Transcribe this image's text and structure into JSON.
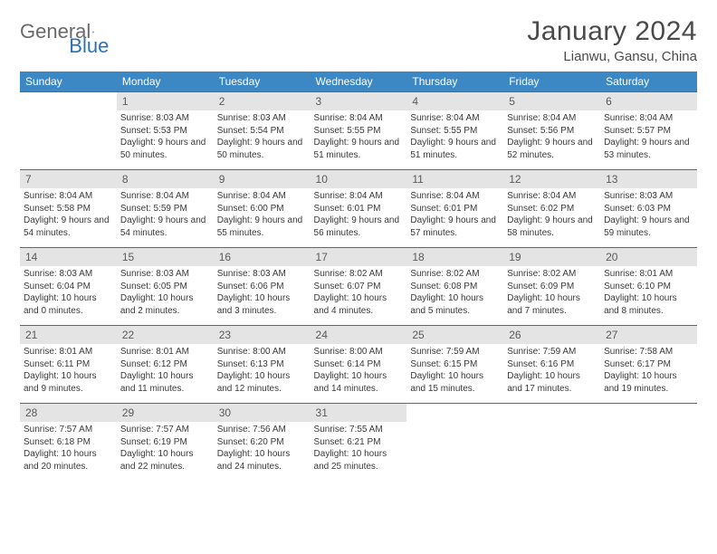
{
  "logo": {
    "text1": "General",
    "text2": "Blue"
  },
  "title": "January 2024",
  "location": "Lianwu, Gansu, China",
  "colors": {
    "header_bg": "#3b88c4",
    "header_text": "#ffffff",
    "row_border": "#3b6fa0",
    "daynum_bg": "#e4e4e4",
    "daynum_text": "#5a5a5a",
    "body_text": "#3a3a3a",
    "title_text": "#4a4a4a",
    "logo_gray": "#6a6a6a",
    "logo_blue": "#2a73b8"
  },
  "days_of_week": [
    "Sunday",
    "Monday",
    "Tuesday",
    "Wednesday",
    "Thursday",
    "Friday",
    "Saturday"
  ],
  "weeks": [
    [
      null,
      {
        "n": "1",
        "sr": "8:03 AM",
        "ss": "5:53 PM",
        "dl": "9 hours and 50 minutes."
      },
      {
        "n": "2",
        "sr": "8:03 AM",
        "ss": "5:54 PM",
        "dl": "9 hours and 50 minutes."
      },
      {
        "n": "3",
        "sr": "8:04 AM",
        "ss": "5:55 PM",
        "dl": "9 hours and 51 minutes."
      },
      {
        "n": "4",
        "sr": "8:04 AM",
        "ss": "5:55 PM",
        "dl": "9 hours and 51 minutes."
      },
      {
        "n": "5",
        "sr": "8:04 AM",
        "ss": "5:56 PM",
        "dl": "9 hours and 52 minutes."
      },
      {
        "n": "6",
        "sr": "8:04 AM",
        "ss": "5:57 PM",
        "dl": "9 hours and 53 minutes."
      }
    ],
    [
      {
        "n": "7",
        "sr": "8:04 AM",
        "ss": "5:58 PM",
        "dl": "9 hours and 54 minutes."
      },
      {
        "n": "8",
        "sr": "8:04 AM",
        "ss": "5:59 PM",
        "dl": "9 hours and 54 minutes."
      },
      {
        "n": "9",
        "sr": "8:04 AM",
        "ss": "6:00 PM",
        "dl": "9 hours and 55 minutes."
      },
      {
        "n": "10",
        "sr": "8:04 AM",
        "ss": "6:01 PM",
        "dl": "9 hours and 56 minutes."
      },
      {
        "n": "11",
        "sr": "8:04 AM",
        "ss": "6:01 PM",
        "dl": "9 hours and 57 minutes."
      },
      {
        "n": "12",
        "sr": "8:04 AM",
        "ss": "6:02 PM",
        "dl": "9 hours and 58 minutes."
      },
      {
        "n": "13",
        "sr": "8:03 AM",
        "ss": "6:03 PM",
        "dl": "9 hours and 59 minutes."
      }
    ],
    [
      {
        "n": "14",
        "sr": "8:03 AM",
        "ss": "6:04 PM",
        "dl": "10 hours and 0 minutes."
      },
      {
        "n": "15",
        "sr": "8:03 AM",
        "ss": "6:05 PM",
        "dl": "10 hours and 2 minutes."
      },
      {
        "n": "16",
        "sr": "8:03 AM",
        "ss": "6:06 PM",
        "dl": "10 hours and 3 minutes."
      },
      {
        "n": "17",
        "sr": "8:02 AM",
        "ss": "6:07 PM",
        "dl": "10 hours and 4 minutes."
      },
      {
        "n": "18",
        "sr": "8:02 AM",
        "ss": "6:08 PM",
        "dl": "10 hours and 5 minutes."
      },
      {
        "n": "19",
        "sr": "8:02 AM",
        "ss": "6:09 PM",
        "dl": "10 hours and 7 minutes."
      },
      {
        "n": "20",
        "sr": "8:01 AM",
        "ss": "6:10 PM",
        "dl": "10 hours and 8 minutes."
      }
    ],
    [
      {
        "n": "21",
        "sr": "8:01 AM",
        "ss": "6:11 PM",
        "dl": "10 hours and 9 minutes."
      },
      {
        "n": "22",
        "sr": "8:01 AM",
        "ss": "6:12 PM",
        "dl": "10 hours and 11 minutes."
      },
      {
        "n": "23",
        "sr": "8:00 AM",
        "ss": "6:13 PM",
        "dl": "10 hours and 12 minutes."
      },
      {
        "n": "24",
        "sr": "8:00 AM",
        "ss": "6:14 PM",
        "dl": "10 hours and 14 minutes."
      },
      {
        "n": "25",
        "sr": "7:59 AM",
        "ss": "6:15 PM",
        "dl": "10 hours and 15 minutes."
      },
      {
        "n": "26",
        "sr": "7:59 AM",
        "ss": "6:16 PM",
        "dl": "10 hours and 17 minutes."
      },
      {
        "n": "27",
        "sr": "7:58 AM",
        "ss": "6:17 PM",
        "dl": "10 hours and 19 minutes."
      }
    ],
    [
      {
        "n": "28",
        "sr": "7:57 AM",
        "ss": "6:18 PM",
        "dl": "10 hours and 20 minutes."
      },
      {
        "n": "29",
        "sr": "7:57 AM",
        "ss": "6:19 PM",
        "dl": "10 hours and 22 minutes."
      },
      {
        "n": "30",
        "sr": "7:56 AM",
        "ss": "6:20 PM",
        "dl": "10 hours and 24 minutes."
      },
      {
        "n": "31",
        "sr": "7:55 AM",
        "ss": "6:21 PM",
        "dl": "10 hours and 25 minutes."
      },
      null,
      null,
      null
    ]
  ],
  "labels": {
    "sunrise": "Sunrise: ",
    "sunset": "Sunset: ",
    "daylight": "Daylight: "
  }
}
